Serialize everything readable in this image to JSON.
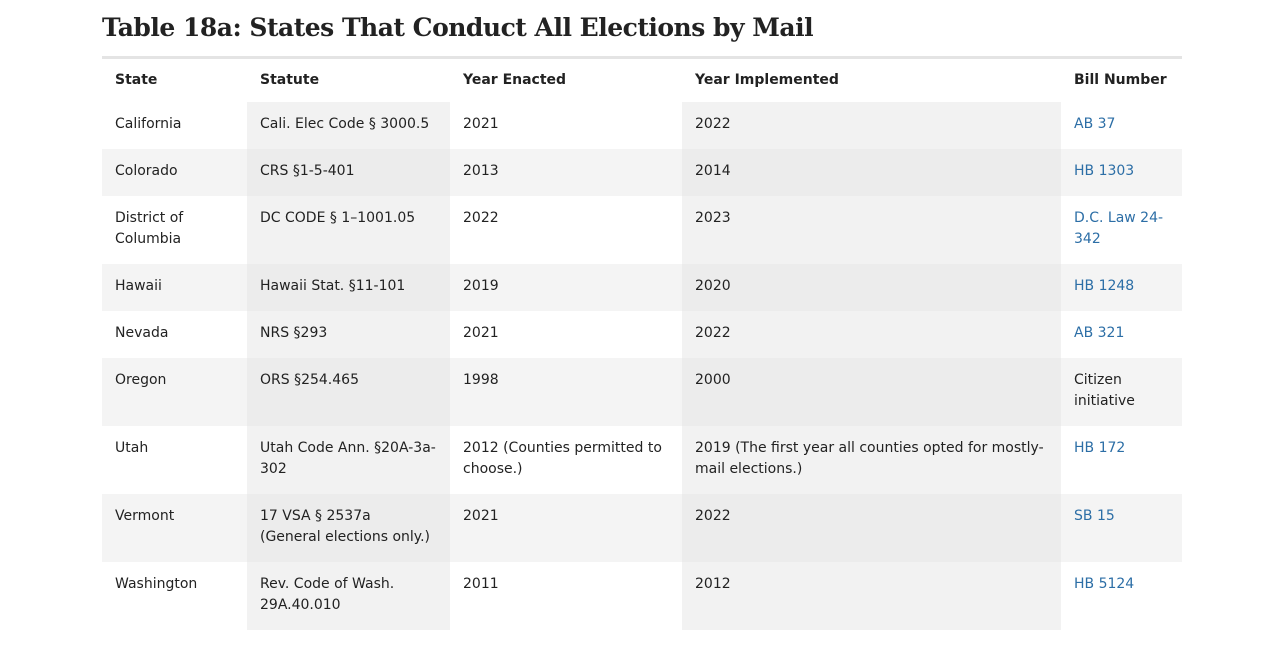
{
  "title": "Table 18a: States That Conduct All Elections by Mail",
  "headers": [
    "State",
    "Statute",
    "Year Enacted",
    "Year Implemented",
    "Bill Number"
  ],
  "rows": [
    {
      "state": "California",
      "statute": "Cali. Elec Code § 3000.5",
      "enacted": "2021",
      "implemented": "2022",
      "bill": "AB 37",
      "bill_is_link": true
    },
    {
      "state": "Colorado",
      "statute": "CRS §1-5-401",
      "enacted": "2013",
      "implemented": "2014",
      "bill": "HB 1303",
      "bill_is_link": true
    },
    {
      "state": "District of Columbia",
      "statute": "DC CODE § 1–1001.05",
      "enacted": "2022",
      "implemented": "2023",
      "bill": "D.C. Law 24-342",
      "bill_is_link": true
    },
    {
      "state": "Hawaii",
      "statute": "Hawaii Stat. §11-101",
      "enacted": "2019",
      "implemented": "2020",
      "bill": "HB 1248",
      "bill_is_link": true
    },
    {
      "state": "Nevada",
      "statute": "NRS §293",
      "enacted": "2021",
      "implemented": "2022",
      "bill": "AB 321",
      "bill_is_link": true
    },
    {
      "state": "Oregon",
      "statute": "ORS §254.465",
      "enacted": "1998",
      "implemented": "2000",
      "bill": "Citizen initiative",
      "bill_is_link": false
    },
    {
      "state": "Utah",
      "statute": "Utah Code Ann. §20A-3a-302",
      "enacted": "2012 (Counties permitted to choose.)",
      "implemented": "2019 (The first year all counties opted for mostly-mail elections.)",
      "bill": "HB 172",
      "bill_is_link": true
    },
    {
      "state": "Vermont",
      "statute": "17 VSA § 2537a\n(General elections only.)",
      "enacted": "2021",
      "implemented": "2022",
      "bill": "SB 15",
      "bill_is_link": true
    },
    {
      "state": "Washington",
      "statute": "Rev. Code of Wash. 29A.40.010",
      "enacted": "2011",
      "implemented": "2012",
      "bill": "HB 5124",
      "bill_is_link": true
    }
  ],
  "colors": {
    "link": "#2c6ea6",
    "text": "#222222",
    "row_stripe": "#f4f4f4",
    "column_shade": "#f2f2f2"
  }
}
